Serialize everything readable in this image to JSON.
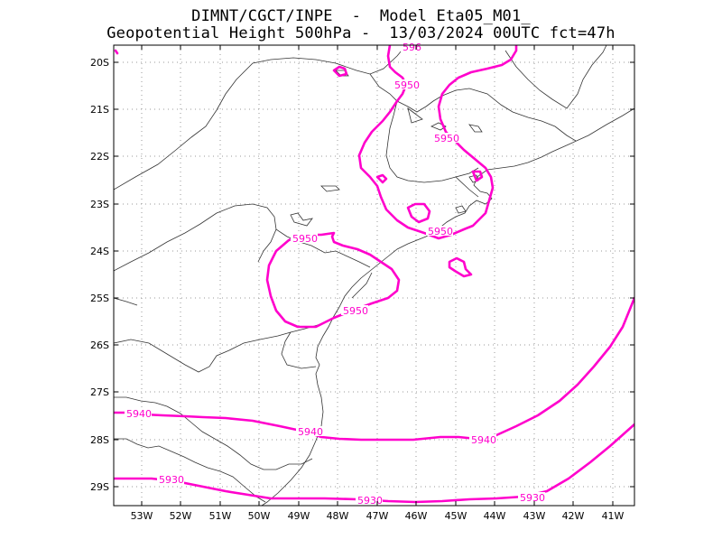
{
  "title_line1": "DIMNT/CGCT/INPE  -  Model Eta05_M01_",
  "title_line2": "Geopotential Height 500hPa -  13/03/2024 00UTC fct=47h",
  "contour_color": "#ff00cc",
  "lat_labels": [
    "20S",
    "21S",
    "22S",
    "23S",
    "24S",
    "25S",
    "26S",
    "27S",
    "28S",
    "29S"
  ],
  "lon_labels": [
    "53W",
    "52W",
    "51W",
    "50W",
    "49W",
    "48W",
    "47W",
    "46W",
    "45W",
    "44W",
    "43W",
    "42W",
    "41W"
  ],
  "contours": {
    "c5950_top": "5950",
    "c5950_right": "5950",
    "c5950_coast": "5950",
    "c5950_west": "5950",
    "c5950_bottom": "5950",
    "c5940_a": "5940",
    "c5940_b": "5940",
    "c5940_c": "5940",
    "c5930_a": "5930",
    "c5930_b": "5930",
    "c5930_c": "5930",
    "c5960_partial": "596"
  }
}
